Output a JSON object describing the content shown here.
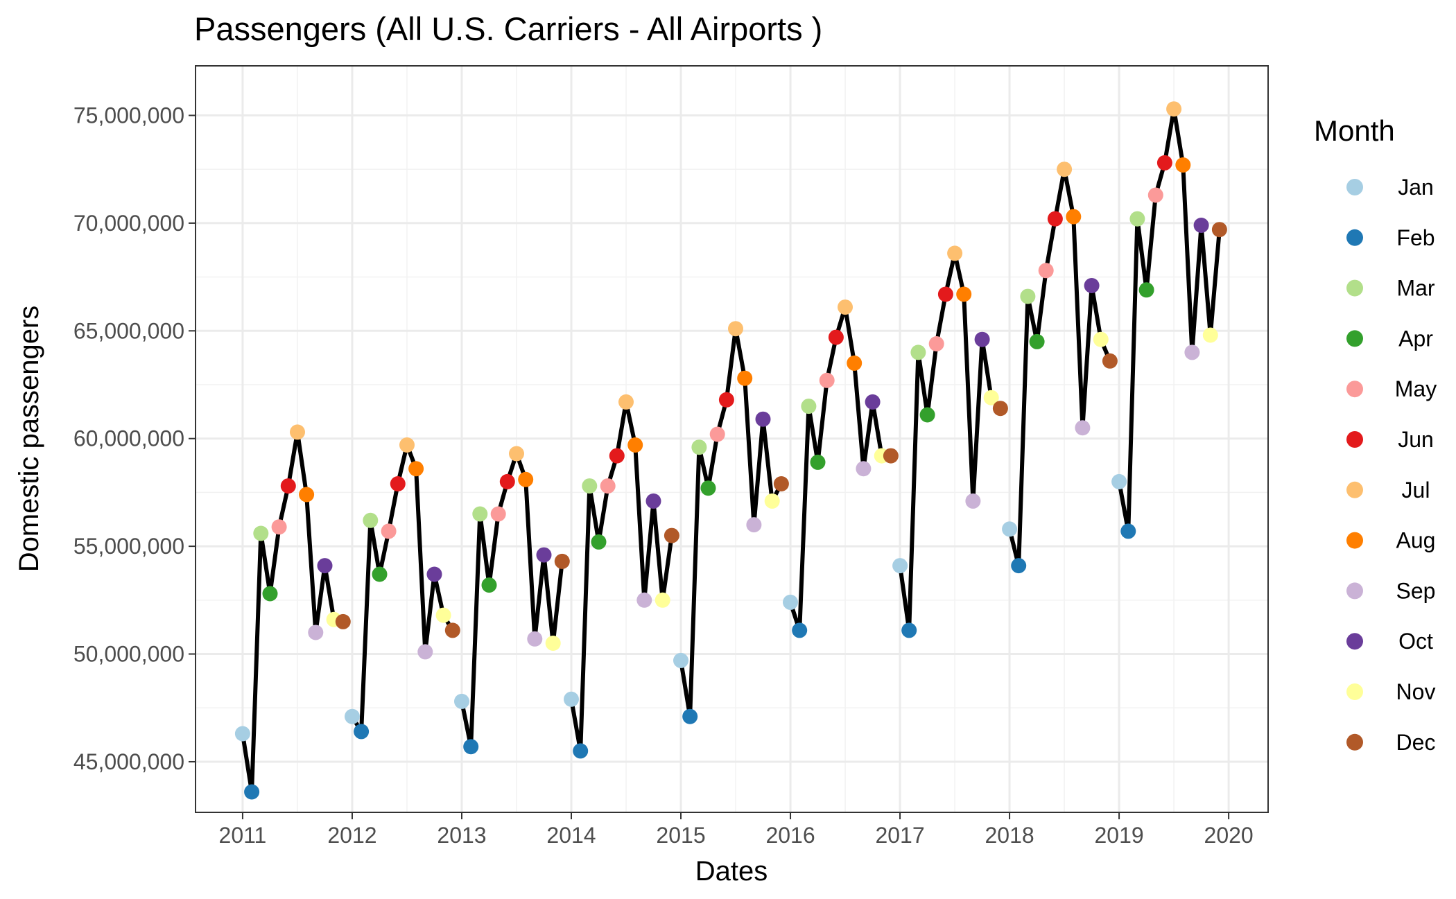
{
  "chart_data": {
    "type": "line",
    "title": "Passengers (All U.S. Carriers - All Airports )",
    "xlabel": "Dates",
    "ylabel": "Domestic passengers",
    "x_ticks": [
      "2011",
      "2012",
      "2013",
      "2014",
      "2015",
      "2016",
      "2017",
      "2018",
      "2019",
      "2020"
    ],
    "y_ticks": [
      "45,000,000",
      "50,000,000",
      "55,000,000",
      "60,000,000",
      "65,000,000",
      "70,000,000",
      "75,000,000"
    ],
    "xlim": [
      2010.57,
      2020.36
    ],
    "ylim": [
      42650000,
      77300000
    ],
    "grid": true,
    "legend": {
      "title": "Month",
      "placement": "right",
      "entries": [
        {
          "label": "Jan",
          "color": "#a6cee3"
        },
        {
          "label": "Feb",
          "color": "#1f78b4"
        },
        {
          "label": "Mar",
          "color": "#b2df8a"
        },
        {
          "label": "Apr",
          "color": "#33a02c"
        },
        {
          "label": "May",
          "color": "#fb9a99"
        },
        {
          "label": "Jun",
          "color": "#e31a1c"
        },
        {
          "label": "Jul",
          "color": "#fdbf6f"
        },
        {
          "label": "Aug",
          "color": "#ff7f00"
        },
        {
          "label": "Sep",
          "color": "#cab2d6"
        },
        {
          "label": "Oct",
          "color": "#6a3d9a"
        },
        {
          "label": "Nov",
          "color": "#ffff99"
        },
        {
          "label": "Dec",
          "color": "#b15928"
        }
      ]
    },
    "line_color": "#000000",
    "series": [
      {
        "year": 2011,
        "values": [
          46300000,
          43600000,
          55600000,
          52800000,
          55900000,
          57800000,
          60300000,
          57400000,
          51000000,
          54100000,
          51600000,
          51500000
        ]
      },
      {
        "year": 2012,
        "values": [
          47100000,
          46400000,
          56200000,
          53700000,
          55700000,
          57900000,
          59700000,
          58600000,
          50100000,
          53700000,
          51800000,
          51100000
        ]
      },
      {
        "year": 2013,
        "values": [
          47800000,
          45700000,
          56500000,
          53200000,
          56500000,
          58000000,
          59300000,
          58100000,
          50700000,
          54600000,
          50500000,
          54300000
        ]
      },
      {
        "year": 2014,
        "values": [
          47900000,
          45500000,
          57800000,
          55200000,
          57800000,
          59200000,
          61700000,
          59700000,
          52500000,
          57100000,
          52500000,
          55500000
        ]
      },
      {
        "year": 2015,
        "values": [
          49700000,
          47100000,
          59600000,
          57700000,
          60200000,
          61800000,
          65100000,
          62800000,
          56000000,
          60900000,
          57100000,
          57900000
        ]
      },
      {
        "year": 2016,
        "values": [
          52400000,
          51100000,
          61500000,
          58900000,
          62700000,
          64700000,
          66100000,
          63500000,
          58600000,
          61700000,
          59200000,
          59200000
        ]
      },
      {
        "year": 2017,
        "values": [
          54100000,
          51100000,
          64000000,
          61100000,
          64400000,
          66700000,
          68600000,
          66700000,
          57100000,
          64600000,
          61900000,
          61400000
        ]
      },
      {
        "year": 2018,
        "values": [
          55800000,
          54100000,
          66600000,
          64500000,
          67800000,
          70200000,
          72500000,
          70300000,
          60500000,
          67100000,
          64600000,
          63600000
        ]
      },
      {
        "year": 2019,
        "values": [
          58000000,
          55700000,
          70200000,
          66900000,
          71300000,
          72800000,
          75300000,
          72700000,
          64000000,
          69900000,
          64800000,
          69700000
        ]
      }
    ]
  }
}
